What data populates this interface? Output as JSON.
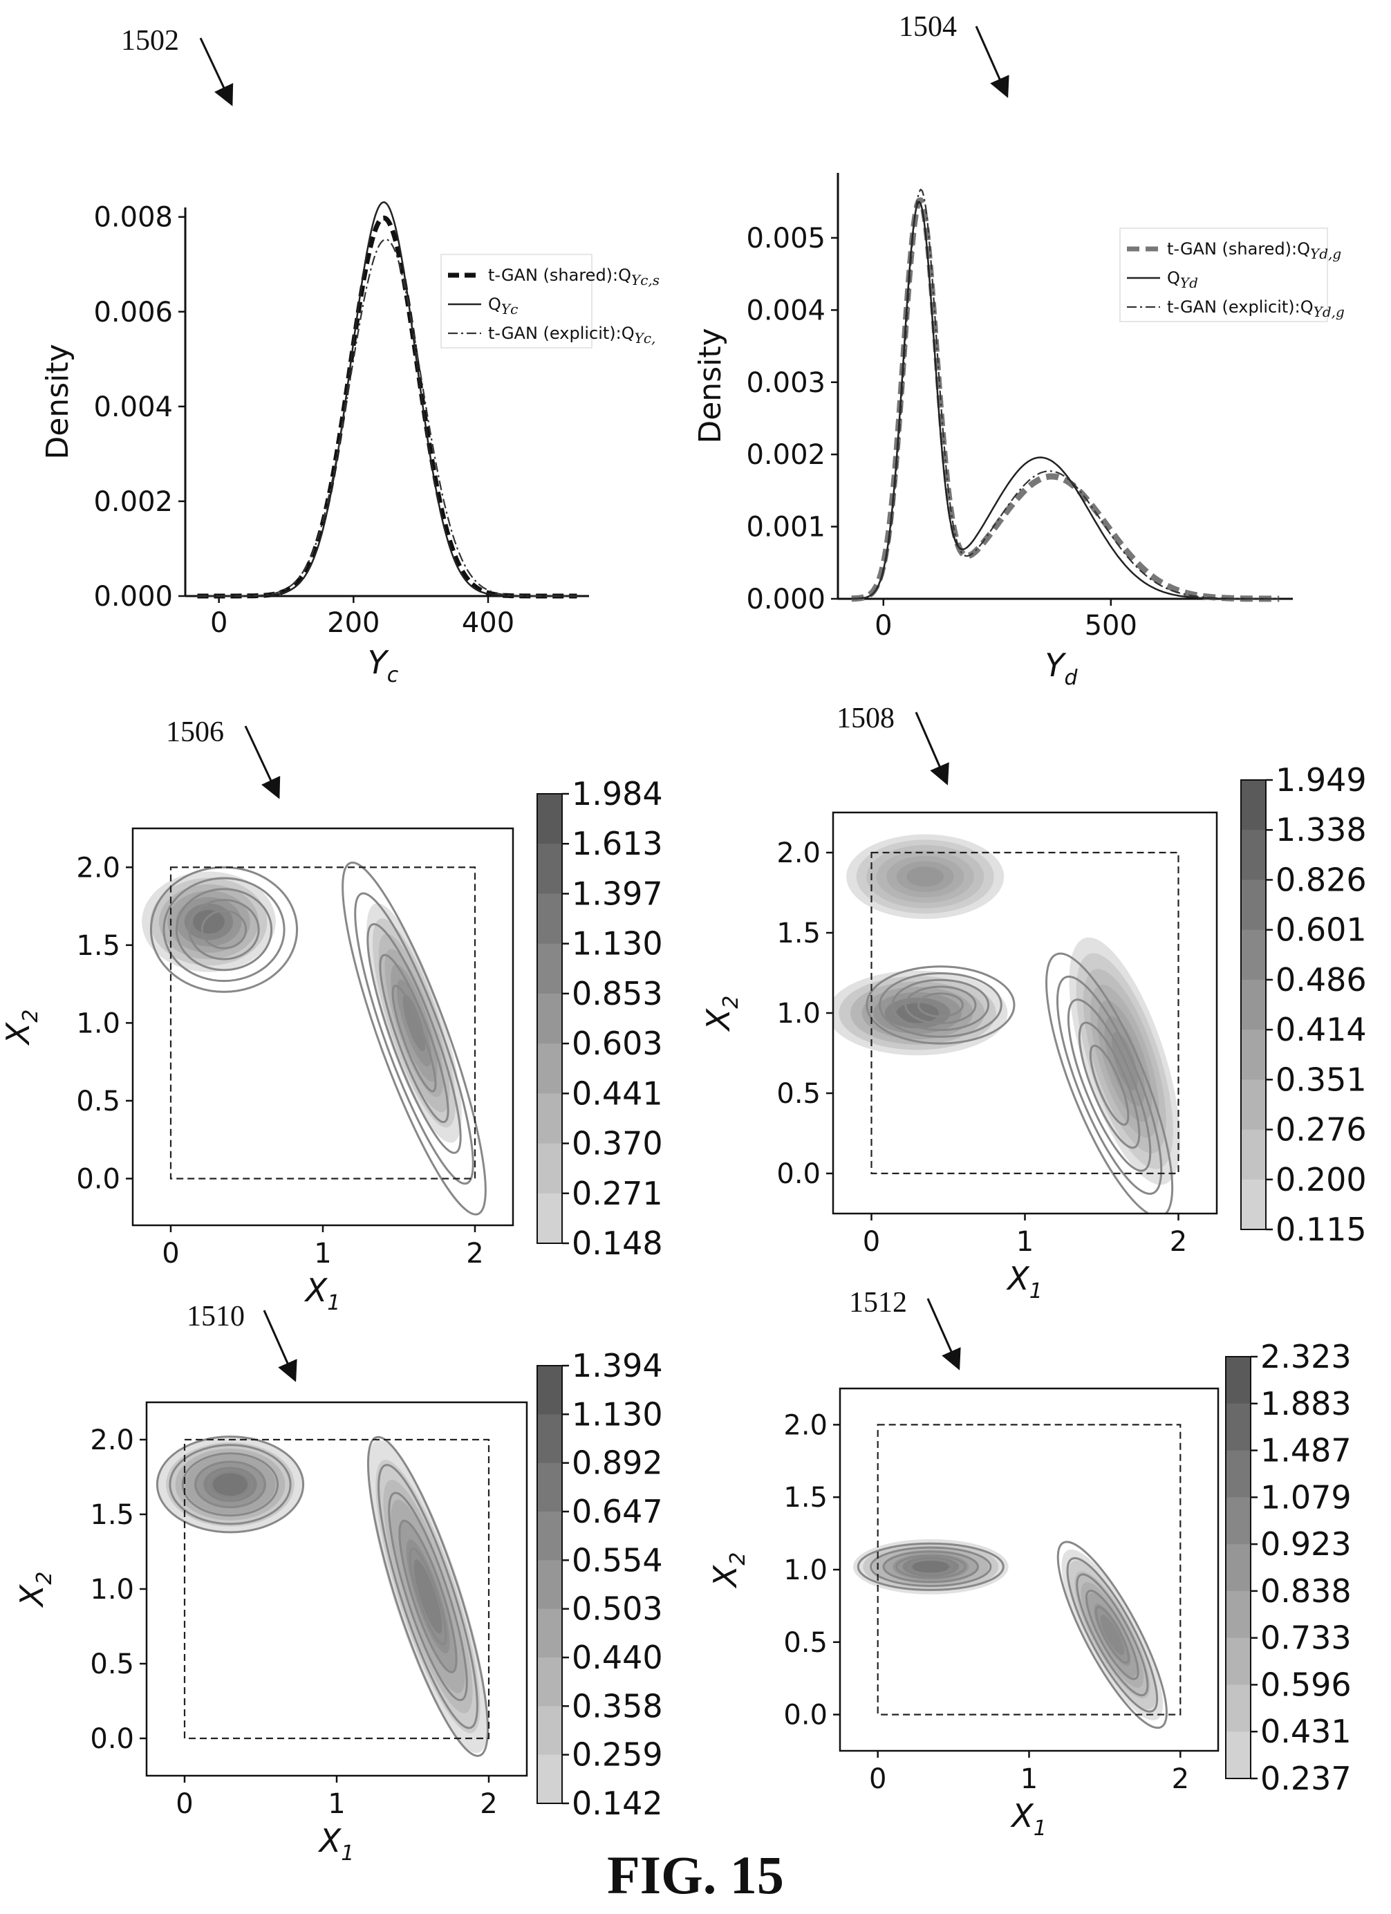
{
  "figure_caption": "FIG. 15",
  "chart_data": [
    {
      "id": "1502",
      "type": "line",
      "ylabel": "Density",
      "xlabel_main": "Y",
      "xlabel_sub": "c",
      "xlim": [
        -50,
        550
      ],
      "ylim": [
        0,
        0.0082
      ],
      "xticks": [
        0,
        200,
        400
      ],
      "yticks": [
        "0.000",
        "0.002",
        "0.004",
        "0.006",
        "0.008"
      ],
      "ytick_values": [
        0,
        0.002,
        0.004,
        0.006,
        0.008
      ],
      "legend_position": "upper-right",
      "series": [
        {
          "name": "t-GAN (shared):Q",
          "name_sub": "Yc,s",
          "style": "dashed-thick",
          "mixture": [
            [
              1,
              245,
              50
            ]
          ],
          "x": [
            -30,
            0,
            50,
            100,
            150,
            200,
            245,
            290,
            340,
            390,
            450,
            520
          ],
          "y": [
            0,
            0,
            6e-05,
            0.0005,
            0.0026,
            0.0061,
            0.0078,
            0.0062,
            0.0025,
            0.0005,
            3e-05,
            0
          ]
        },
        {
          "name": "Q",
          "name_sub": "Yc",
          "style": "solid",
          "mixture": [
            [
              1,
              245,
              48
            ]
          ],
          "x": [
            -30,
            0,
            50,
            100,
            150,
            200,
            245,
            290,
            340,
            390,
            450,
            520
          ],
          "y": [
            0,
            0,
            5e-05,
            0.0004,
            0.0025,
            0.0063,
            0.008,
            0.0063,
            0.0024,
            0.0004,
            2e-05,
            0
          ]
        },
        {
          "name": "t-GAN (explicit):Q",
          "name_sub": "Yc,",
          "style": "dashdot",
          "mixture": [
            [
              1,
              248,
              53
            ]
          ],
          "x": [
            -30,
            0,
            50,
            100,
            150,
            200,
            248,
            295,
            345,
            395,
            460,
            520
          ],
          "y": [
            0,
            0,
            0.0001,
            0.0006,
            0.0025,
            0.0058,
            0.0075,
            0.006,
            0.0026,
            0.0007,
            5e-05,
            0
          ]
        }
      ]
    },
    {
      "id": "1504",
      "type": "line",
      "ylabel": "Density",
      "xlabel_main": "Y",
      "xlabel_sub": "d",
      "xlim": [
        -100,
        900
      ],
      "ylim": [
        0,
        0.0059
      ],
      "xticks": [
        0,
        500
      ],
      "yticks": [
        "0.000",
        "0.001",
        "0.002",
        "0.003",
        "0.004",
        "0.005"
      ],
      "ytick_values": [
        0,
        0.001,
        0.002,
        0.003,
        0.004,
        0.005
      ],
      "legend_position": "upper-right",
      "series": [
        {
          "name": "t-GAN (shared):Q",
          "name_sub": "Yd,g",
          "style": "dashed-thick-gray",
          "mixture": [
            [
              0.49,
              80,
              36
            ],
            [
              0.51,
              370,
              120
            ]
          ],
          "x": [
            -60,
            0,
            40,
            80,
            120,
            175,
            250,
            320,
            400,
            500,
            600,
            700,
            800
          ],
          "y": [
            0,
            0.0003,
            0.0032,
            0.0054,
            0.0035,
            0.0005,
            0.0011,
            0.0016,
            0.0016,
            0.0011,
            0.0005,
            8e-05,
            0
          ]
        },
        {
          "name": "Q",
          "name_sub": "Yd",
          "style": "solid",
          "mixture": [
            [
              0.46,
              78,
              34
            ],
            [
              0.54,
              345,
              110
            ]
          ],
          "x": [
            -60,
            0,
            40,
            78,
            120,
            175,
            250,
            325,
            400,
            500,
            600,
            700,
            800
          ],
          "y": [
            0,
            0.0003,
            0.0031,
            0.0051,
            0.0034,
            0.0004,
            0.0012,
            0.0018,
            0.0016,
            0.001,
            0.0004,
            5e-05,
            0
          ]
        },
        {
          "name": "t-GAN (explicit):Q",
          "name_sub": "Yd,g",
          "style": "dashdot",
          "mixture": [
            [
              0.49,
              82,
              35
            ],
            [
              0.51,
              365,
              115
            ]
          ],
          "x": [
            -60,
            0,
            40,
            82,
            120,
            175,
            250,
            320,
            400,
            500,
            600,
            700,
            800
          ],
          "y": [
            0,
            0.0003,
            0.0033,
            0.0056,
            0.0034,
            0.0005,
            0.0011,
            0.0016,
            0.0015,
            0.0011,
            0.0005,
            7e-05,
            0
          ]
        }
      ]
    },
    {
      "id": "1506",
      "type": "heatmap",
      "subtype": "kde-contour",
      "xlabel_main": "X",
      "xlabel_sub": "1",
      "ylabel_main": "X",
      "ylabel_sub": "2",
      "xlim": [
        -0.25,
        2.25
      ],
      "ylim": [
        -0.3,
        2.25
      ],
      "xticks": [
        "0",
        "1",
        "2"
      ],
      "xtick_values": [
        0,
        1,
        2
      ],
      "yticks": [
        "0.0",
        "0.5",
        "1.0",
        "1.5",
        "2.0"
      ],
      "ytick_values": [
        0,
        0.5,
        1.0,
        1.5,
        2.0
      ],
      "dashed_box": [
        0,
        0,
        2,
        2
      ],
      "colorbar": [
        "1.984",
        "1.613",
        "1.397",
        "1.130",
        "0.853",
        "0.603",
        "0.441",
        "0.370",
        "0.271",
        "0.148"
      ],
      "filled": [
        {
          "center": [
            0.25,
            1.65
          ],
          "sx": 0.3,
          "sy": 0.22,
          "peak": 1.0
        },
        {
          "center": [
            1.6,
            1.0
          ],
          "sx": 0.13,
          "sy": 0.55,
          "rot": -18,
          "peak": 0.8
        }
      ],
      "lines": [
        {
          "center": [
            0.35,
            1.6
          ],
          "sx": 0.3,
          "sy": 0.25,
          "rot": 0
        },
        {
          "center": [
            1.6,
            0.9
          ],
          "sx": 0.14,
          "sy": 0.75,
          "rot": -20
        }
      ]
    },
    {
      "id": "1508",
      "type": "heatmap",
      "subtype": "kde-contour",
      "xlabel_main": "X",
      "xlabel_sub": "1",
      "ylabel_main": "X",
      "ylabel_sub": "2",
      "xlim": [
        -0.25,
        2.25
      ],
      "ylim": [
        -0.25,
        2.25
      ],
      "xticks": [
        "0",
        "1",
        "2"
      ],
      "xtick_values": [
        0,
        1,
        2
      ],
      "yticks": [
        "0.0",
        "0.5",
        "1.0",
        "1.5",
        "2.0"
      ],
      "ytick_values": [
        0,
        0.5,
        1.0,
        1.5,
        2.0
      ],
      "dashed_box": [
        0,
        0,
        2,
        2
      ],
      "colorbar": [
        "1.949",
        "1.338",
        "0.826",
        "0.601",
        "0.486",
        "0.414",
        "0.351",
        "0.276",
        "0.200",
        "0.115"
      ],
      "filled": [
        {
          "center": [
            0.3,
            1.0
          ],
          "sx": 0.4,
          "sy": 0.18,
          "peak": 1.0
        },
        {
          "center": [
            0.35,
            1.85
          ],
          "sx": 0.35,
          "sy": 0.18,
          "peak": 0.6
        },
        {
          "center": [
            1.65,
            0.7
          ],
          "sx": 0.18,
          "sy": 0.55,
          "rot": -18,
          "peak": 0.7
        }
      ],
      "lines": [
        {
          "center": [
            0.45,
            1.05
          ],
          "sx": 0.3,
          "sy": 0.15,
          "rot": 0
        },
        {
          "center": [
            1.55,
            0.55
          ],
          "sx": 0.15,
          "sy": 0.55,
          "rot": -22
        }
      ]
    },
    {
      "id": "1510",
      "type": "heatmap",
      "subtype": "kde-contour",
      "xlabel_main": "X",
      "xlabel_sub": "1",
      "ylabel_main": "X",
      "ylabel_sub": "2",
      "xlim": [
        -0.25,
        2.25
      ],
      "ylim": [
        -0.25,
        2.25
      ],
      "xticks": [
        "0",
        "1",
        "2"
      ],
      "xtick_values": [
        0,
        1,
        2
      ],
      "yticks": [
        "0.0",
        "0.5",
        "1.0",
        "1.5",
        "2.0"
      ],
      "ytick_values": [
        0,
        0.5,
        1.0,
        1.5,
        2.0
      ],
      "dashed_box": [
        0,
        0,
        2,
        2
      ],
      "colorbar": [
        "1.394",
        "1.130",
        "0.892",
        "0.647",
        "0.554",
        "0.503",
        "0.440",
        "0.358",
        "0.259",
        "0.142"
      ],
      "filled": [
        {
          "center": [
            0.3,
            1.7
          ],
          "sx": 0.33,
          "sy": 0.22,
          "peak": 1.0
        },
        {
          "center": [
            1.6,
            0.95
          ],
          "sx": 0.15,
          "sy": 0.75,
          "rot": -18,
          "peak": 0.85
        }
      ],
      "lines": [
        {
          "center": [
            0.3,
            1.7
          ],
          "sx": 0.3,
          "sy": 0.2,
          "rot": 0
        },
        {
          "center": [
            1.6,
            0.95
          ],
          "sx": 0.13,
          "sy": 0.7,
          "rot": -18
        }
      ]
    },
    {
      "id": "1512",
      "type": "heatmap",
      "subtype": "kde-contour",
      "xlabel_main": "X",
      "xlabel_sub": "1",
      "ylabel_main": "X",
      "ylabel_sub": "2",
      "xlim": [
        -0.25,
        2.25
      ],
      "ylim": [
        -0.25,
        2.25
      ],
      "xticks": [
        "0",
        "1",
        "2"
      ],
      "xtick_values": [
        0,
        1,
        2
      ],
      "yticks": [
        "0.0",
        "0.5",
        "1.0",
        "1.5",
        "2.0"
      ],
      "ytick_values": [
        0,
        0.5,
        1.0,
        1.5,
        2.0
      ],
      "dashed_box": [
        0,
        0,
        2,
        2
      ],
      "colorbar": [
        "2.323",
        "1.883",
        "1.487",
        "1.079",
        "0.923",
        "0.838",
        "0.733",
        "0.596",
        "0.431",
        "0.237"
      ],
      "filled": [
        {
          "center": [
            0.35,
            1.02
          ],
          "sx": 0.35,
          "sy": 0.13,
          "peak": 1.0
        },
        {
          "center": [
            1.55,
            0.55
          ],
          "sx": 0.12,
          "sy": 0.45,
          "rot": -28,
          "peak": 0.75
        }
      ],
      "lines": [
        {
          "center": [
            0.35,
            1.02
          ],
          "sx": 0.3,
          "sy": 0.1,
          "rot": 0
        },
        {
          "center": [
            1.55,
            0.55
          ],
          "sx": 0.11,
          "sy": 0.45,
          "rot": -28
        }
      ]
    }
  ]
}
